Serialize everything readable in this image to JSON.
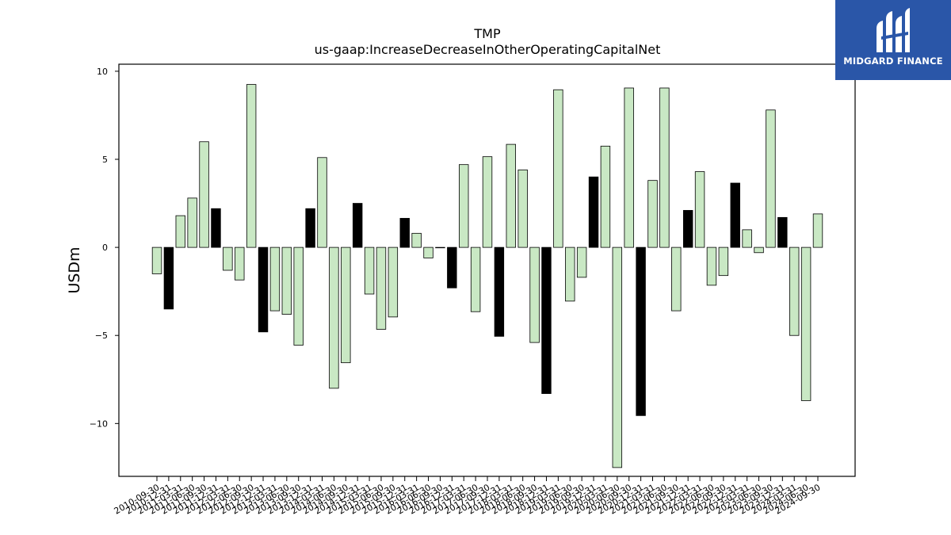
{
  "brand": {
    "name": "MIDGARD FINANCE",
    "bg_color": "#2a56a8",
    "icon": "midgard-logo-icon"
  },
  "chart_data": {
    "type": "bar",
    "title": "TMP",
    "subtitle": "us-gaap:IncreaseDecreaseInOtherOperatingCapitalNet",
    "xlabel": "",
    "ylabel": "USDm",
    "ylim": [
      -13.0,
      10.4
    ],
    "yticks": [
      -10,
      -5,
      0,
      5,
      10
    ],
    "ytick_labels": [
      "−10",
      "−5",
      "0",
      "5",
      "10"
    ],
    "grid": false,
    "legend": "none",
    "colors": {
      "quarterly": "#c9e8c4",
      "annual": "#000000",
      "edge": "#000000"
    },
    "categories": [
      "2010-09-30",
      "2010-12-31",
      "2011-03-31",
      "2011-06-30",
      "2011-09-30",
      "2011-12-31",
      "2012-03-31",
      "2012-06-30",
      "2012-09-30",
      "2012-12-31",
      "2013-03-31",
      "2013-06-30",
      "2013-09-30",
      "2013-12-31",
      "2014-03-31",
      "2014-06-30",
      "2014-09-30",
      "2014-12-31",
      "2015-03-31",
      "2015-06-30",
      "2015-09-30",
      "2015-12-31",
      "2016-03-31",
      "2016-06-30",
      "2016-09-30",
      "2016-12-31",
      "2017-03-31",
      "2017-06-30",
      "2017-09-30",
      "2017-12-31",
      "2018-03-31",
      "2018-06-30",
      "2018-09-30",
      "2018-12-31",
      "2019-03-31",
      "2019-06-30",
      "2019-09-30",
      "2019-12-31",
      "2020-03-31",
      "2020-06-30",
      "2020-09-30",
      "2020-12-31",
      "2021-03-31",
      "2021-06-30",
      "2021-09-30",
      "2021-12-31",
      "2022-03-31",
      "2022-06-30",
      "2022-09-30",
      "2022-12-31",
      "2023-03-31",
      "2023-06-30",
      "2023-09-30",
      "2023-12-31",
      "2024-03-31",
      "2024-06-30",
      "2024-09-30"
    ],
    "tick_labels": [
      "2010-09-30",
      "2010-12-31",
      "2011-03-31",
      "2011-06-30",
      "2011-09-30",
      "2011-12-31",
      "2012-03-31",
      "2012-06-30",
      "2012-09-30",
      "2012-12-31",
      "2013-03-31",
      "2013-06-30",
      "2013-09-30",
      "2013-12-31",
      "2014-03-31",
      "2014-06-30",
      "2014-09-30",
      "2014-12-31",
      "2015-03-31",
      "2015-06-30",
      "2015-09-30",
      "2015-12-31",
      "2016-03-31",
      "2016-06-30",
      "2016-09-30",
      "2016-12-31",
      "2017-03-31",
      "2017-06-30",
      "2017-09-30",
      "2017-12-31",
      "2018-03-31",
      "2018-06-30",
      "2018-09-30",
      "2018-12-31",
      "2019-03-31",
      "2019-06-30",
      "2019-09-30",
      "2019-12-31",
      "2020-03-31",
      "2020-06-30",
      "2020-09-30",
      "2020-12-31",
      "2021-03-31",
      "2021-06-30",
      "2021-09-30",
      "2021-12-31",
      "2022-03-31",
      "2022-06-30",
      "2022-09-30",
      "2022-12-31",
      "2023-03-31",
      "2023-06-30",
      "2023-09-30",
      "2023-12-31",
      "2024-03-31",
      "2024-06-30",
      "2024-09-30"
    ],
    "values": [
      -1.5,
      -3.5,
      1.8,
      2.8,
      6.0,
      2.2,
      -1.3,
      -1.85,
      9.25,
      -4.8,
      -3.6,
      -3.8,
      -5.55,
      2.2,
      5.1,
      -8.0,
      -6.55,
      2.5,
      -2.65,
      -4.65,
      -3.95,
      1.65,
      0.8,
      -0.6,
      0.0,
      -2.3,
      4.7,
      -3.65,
      5.15,
      -5.05,
      5.85,
      4.4,
      -5.4,
      -8.3,
      8.95,
      -3.05,
      -1.7,
      4.0,
      5.75,
      -12.5,
      9.05,
      -9.55,
      3.8,
      9.05,
      -3.6,
      2.1,
      4.3,
      -2.15,
      -1.6,
      3.65,
      1.0,
      -0.3,
      7.8,
      1.7,
      -5.0,
      -8.7,
      1.9
    ],
    "annual": [
      false,
      true,
      false,
      false,
      false,
      true,
      false,
      false,
      false,
      true,
      false,
      false,
      false,
      true,
      false,
      false,
      false,
      true,
      false,
      false,
      false,
      true,
      false,
      false,
      false,
      true,
      false,
      false,
      false,
      true,
      false,
      false,
      false,
      true,
      false,
      false,
      false,
      true,
      false,
      false,
      false,
      true,
      false,
      false,
      false,
      true,
      false,
      false,
      false,
      true,
      false,
      false,
      false,
      true,
      false,
      false,
      false
    ]
  }
}
